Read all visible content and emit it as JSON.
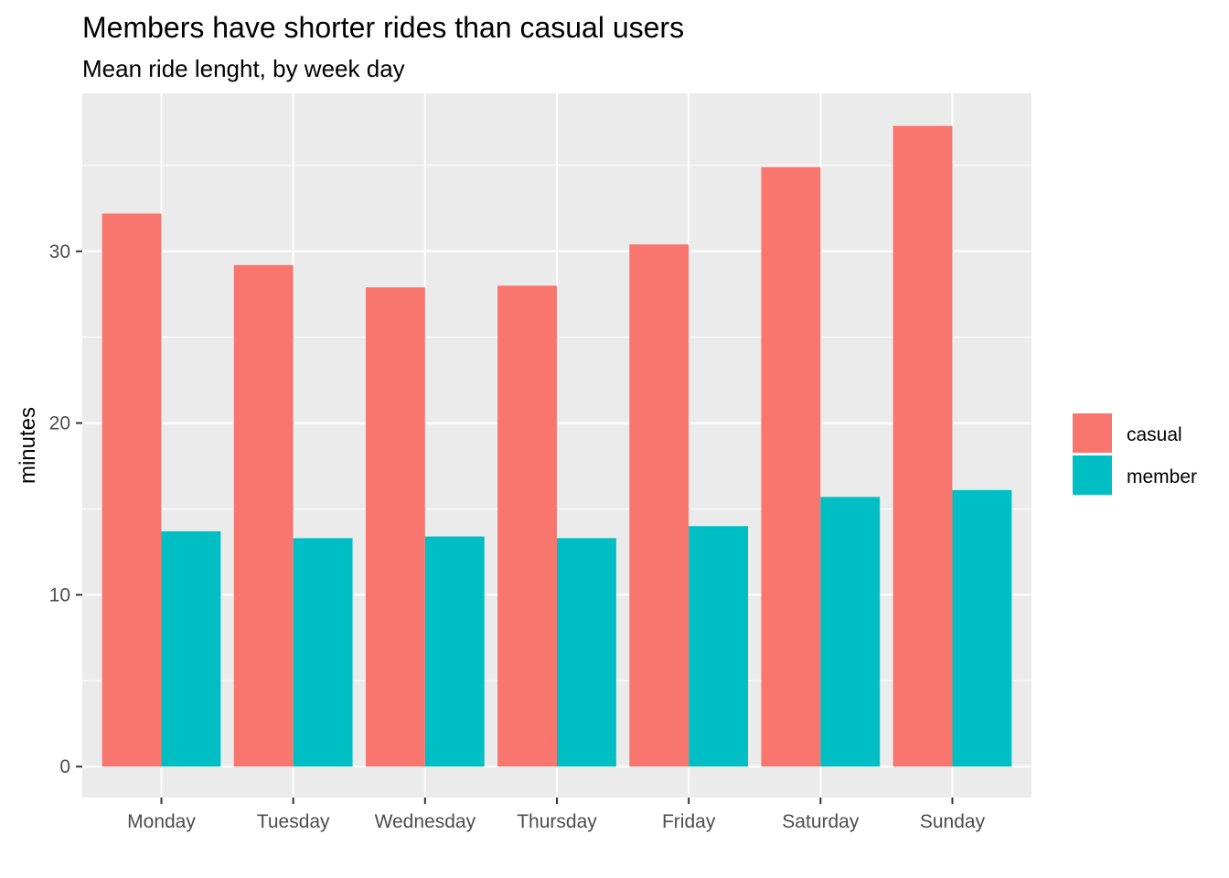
{
  "chart_data": {
    "type": "bar",
    "title": "Members have shorter rides than casual users",
    "subtitle": "Mean ride lenght, by week day",
    "xlabel": "",
    "ylabel": "minutes",
    "categories": [
      "Monday",
      "Tuesday",
      "Wednesday",
      "Thursday",
      "Friday",
      "Saturday",
      "Sunday"
    ],
    "series": [
      {
        "name": "casual",
        "color": "#F8766D",
        "values": [
          32.2,
          29.2,
          27.9,
          28.0,
          30.4,
          34.9,
          37.3
        ]
      },
      {
        "name": "member",
        "color": "#00BFC4",
        "values": [
          13.7,
          13.3,
          13.4,
          13.3,
          14.0,
          15.7,
          16.1
        ]
      }
    ],
    "ylim": [
      -1.8,
      39.2
    ],
    "yticks": [
      0,
      10,
      20,
      30
    ],
    "ytick_labels": [
      "0",
      "10",
      "20",
      "30"
    ],
    "grid": true,
    "panel_background": "#EBEBEB",
    "gridline_color": "#FFFFFF",
    "legend_position": "right"
  }
}
